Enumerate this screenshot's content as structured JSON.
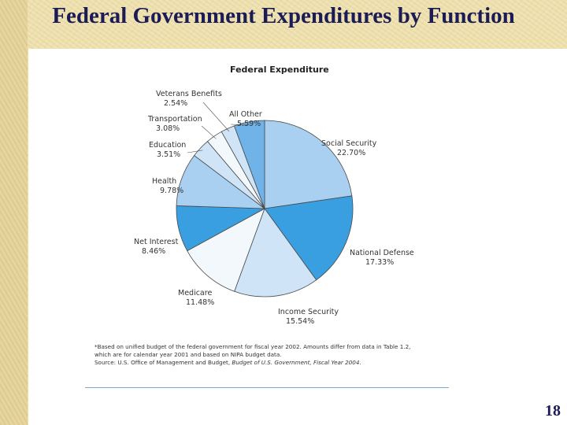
{
  "slide": {
    "title": "Federal Government Expenditures by Function",
    "page_number": "18"
  },
  "chart_data": {
    "type": "pie",
    "title": "Federal Expenditure",
    "slices": [
      {
        "label": "Social Security",
        "value": 22.7,
        "value_text": "22.70%",
        "color": "#a9d0f0"
      },
      {
        "label": "National Defense",
        "value": 17.33,
        "value_text": "17.33%",
        "color": "#3a9fe0"
      },
      {
        "label": "Income Security",
        "value": 15.54,
        "value_text": "15.54%",
        "color": "#cfe4f7"
      },
      {
        "label": "Medicare",
        "value": 11.48,
        "value_text": "11.48%",
        "color": "#f3f8fd"
      },
      {
        "label": "Net Interest",
        "value": 8.46,
        "value_text": "8.46%",
        "color": "#3a9fe0"
      },
      {
        "label": "Health",
        "value": 9.78,
        "value_text": "9.78%",
        "color": "#a9d0f0"
      },
      {
        "label": "Education",
        "value": 3.51,
        "value_text": "3.51%",
        "color": "#cfe4f7"
      },
      {
        "label": "Transportation",
        "value": 3.08,
        "value_text": "3.08%",
        "color": "#f3f8fd"
      },
      {
        "label": "Veterans Benefits",
        "value": 2.54,
        "value_text": "2.54%",
        "color": "#cfe4f7"
      },
      {
        "label": "All Other",
        "value": 5.59,
        "value_text": "5.59%",
        "color": "#6fb3e8"
      }
    ]
  },
  "footnote": {
    "line1": "*Based on unified budget of the federal government for fiscal year 2002. Amounts differ from data in Table 1.2,",
    "line2": "which are for calendar year 2001 and based on NIPA budget data.",
    "source_prefix": "Source: U.S. Office of Management and Budget, ",
    "source_title": "Budget of U.S. Government, Fiscal Year 2004",
    "source_suffix": "."
  }
}
